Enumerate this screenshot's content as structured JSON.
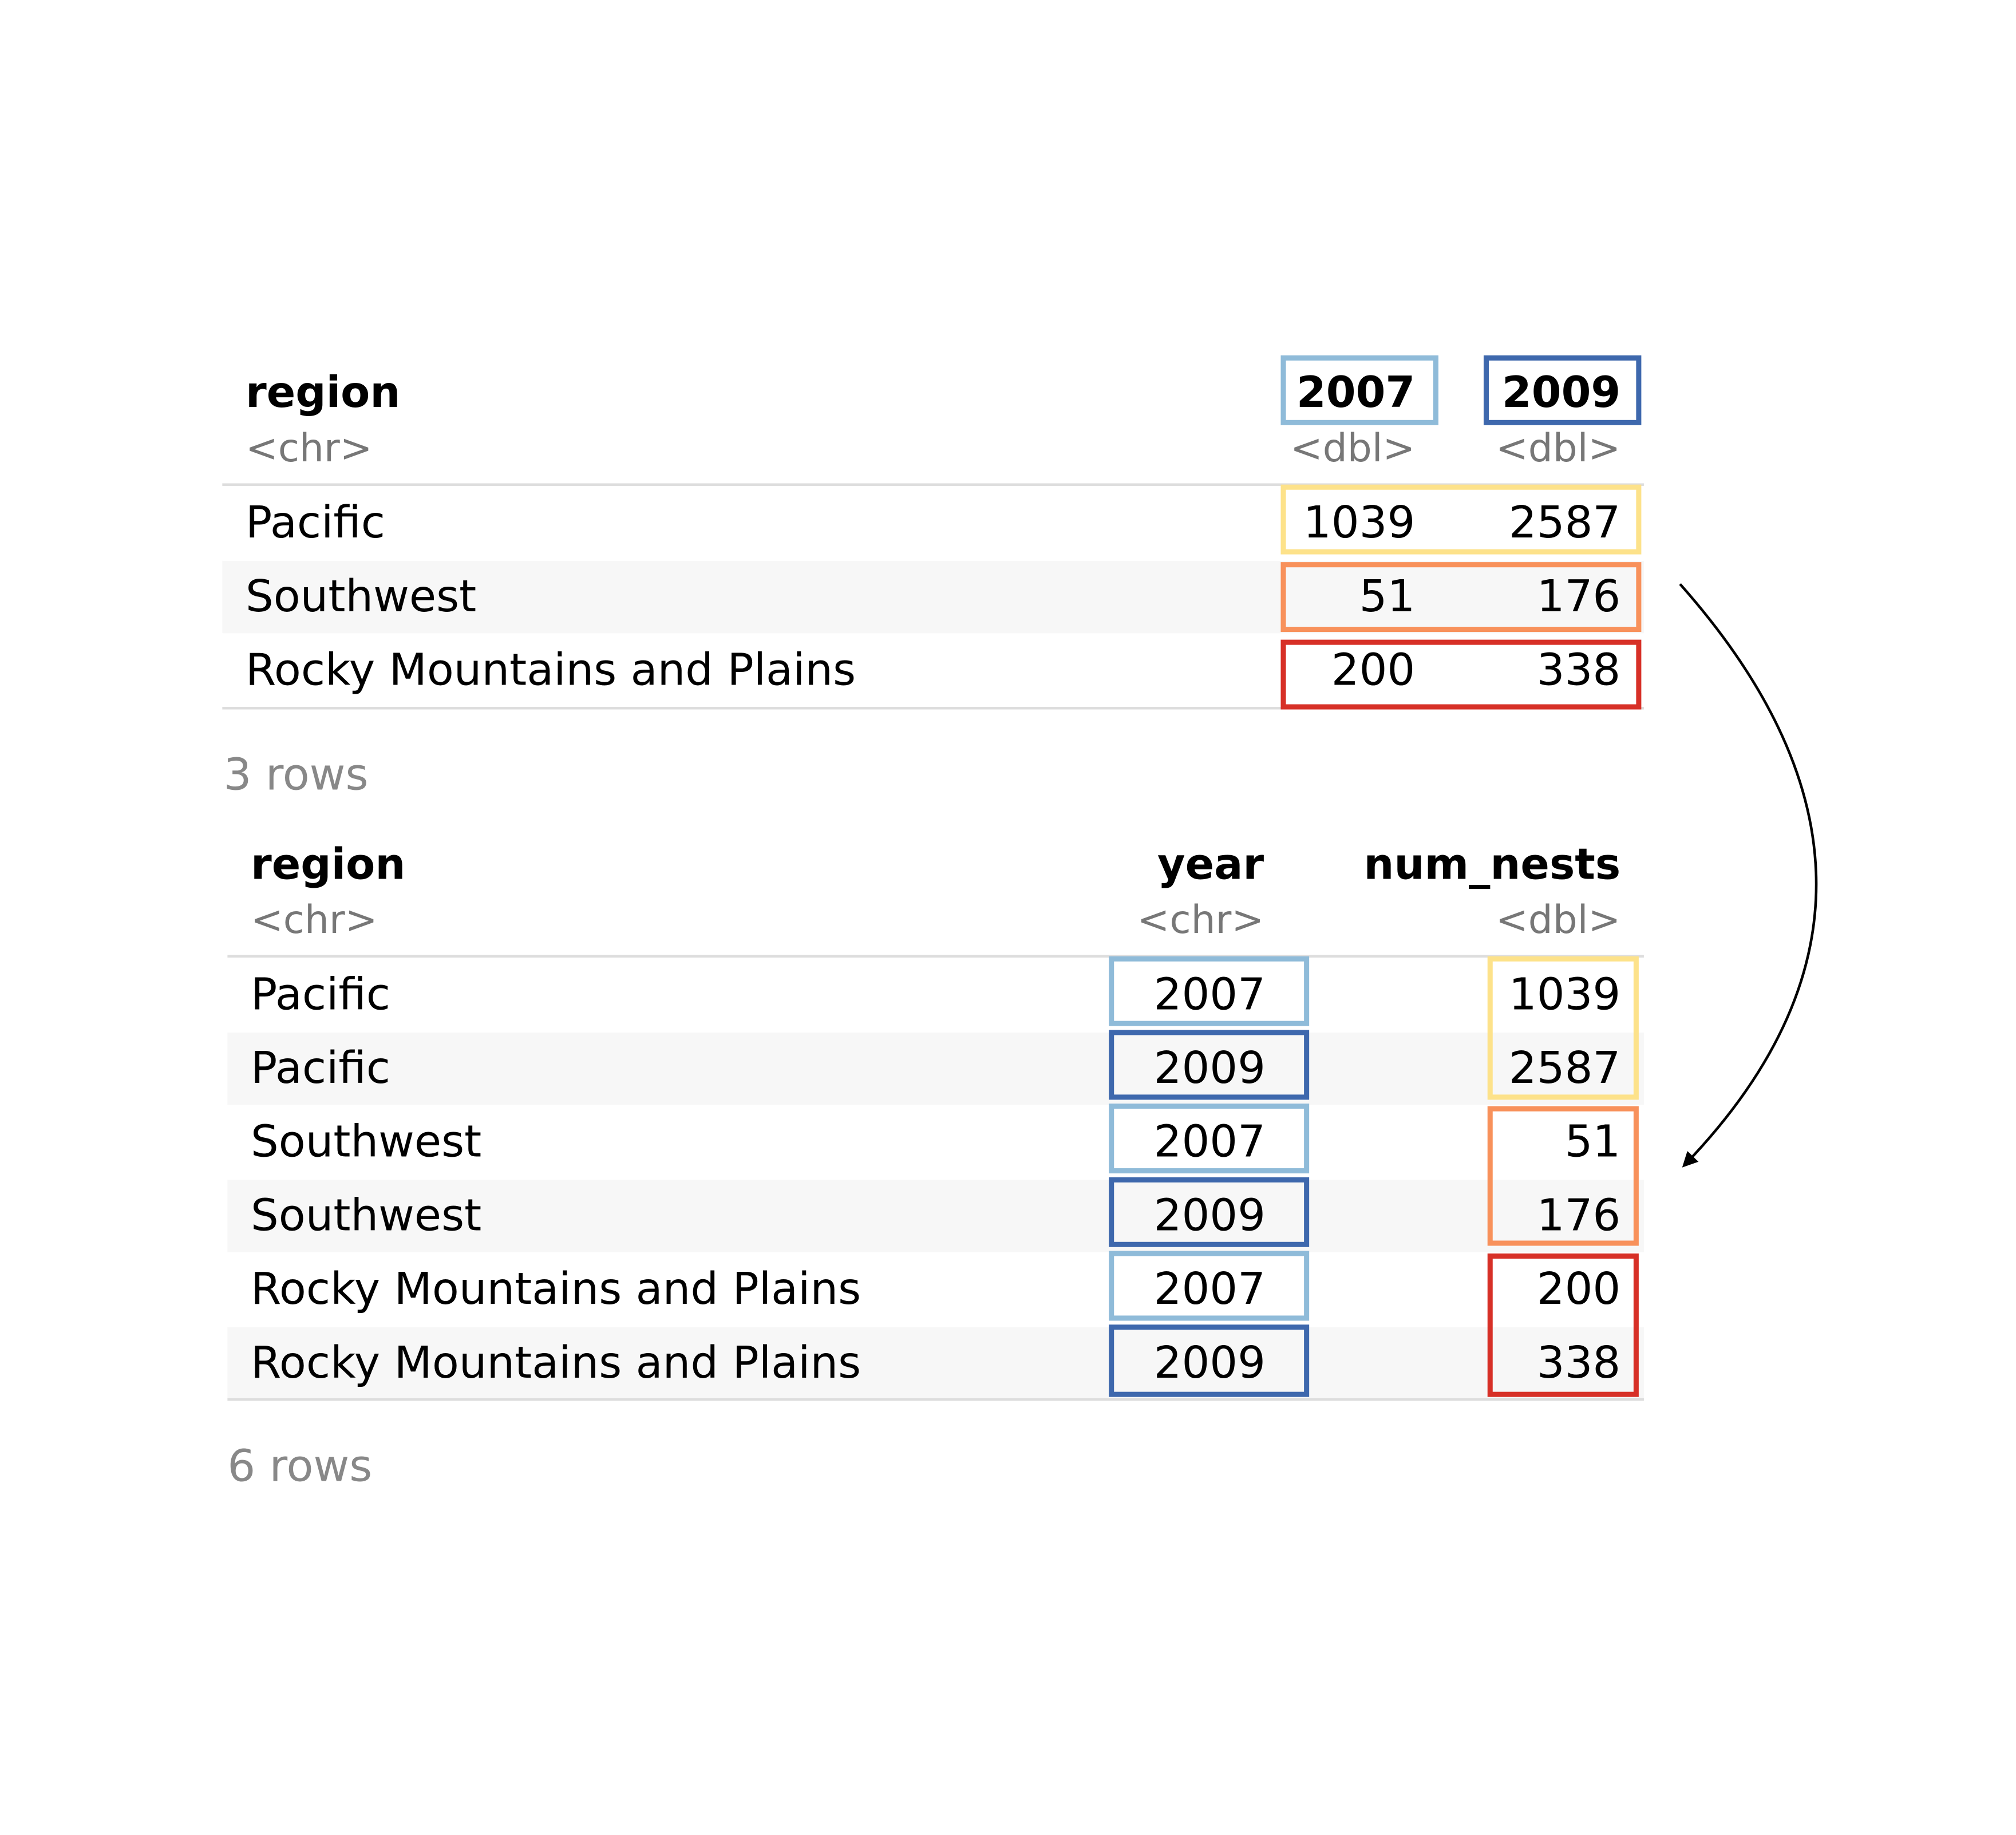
{
  "colors": {
    "y2007": "#8fbbd9",
    "y2009": "#3e68ad",
    "pacific": "#fde28a",
    "southwest": "#f8915b",
    "rocky": "#d73027",
    "header_rule": "#dddddd",
    "stripe": "#f7f7f7"
  },
  "wide_table": {
    "headers": {
      "region": "region",
      "region_type": "<chr>",
      "c2007": "2007",
      "c2007_type": "<dbl>",
      "c2009": "2009",
      "c2009_type": "<dbl>"
    },
    "rows": [
      {
        "region": "Pacific",
        "v2007": "1039",
        "v2009": "2587"
      },
      {
        "region": "Southwest",
        "v2007": "51",
        "v2009": "176"
      },
      {
        "region": "Rocky Mountains and Plains",
        "v2007": "200",
        "v2009": "338"
      }
    ],
    "footer": "3 rows"
  },
  "long_table": {
    "headers": {
      "region": "region",
      "region_type": "<chr>",
      "year": "year",
      "year_type": "<chr>",
      "num_nests": "num_nests",
      "num_nests_type": "<dbl>"
    },
    "rows": [
      {
        "region": "Pacific",
        "year": "2007",
        "num_nests": "1039"
      },
      {
        "region": "Pacific",
        "year": "2009",
        "num_nests": "2587"
      },
      {
        "region": "Southwest",
        "year": "2007",
        "num_nests": "51"
      },
      {
        "region": "Southwest",
        "year": "2009",
        "num_nests": "176"
      },
      {
        "region": "Rocky Mountains and Plains",
        "year": "2007",
        "num_nests": "200"
      },
      {
        "region": "Rocky Mountains and Plains",
        "year": "2009",
        "num_nests": "338"
      }
    ],
    "footer": "6 rows"
  }
}
